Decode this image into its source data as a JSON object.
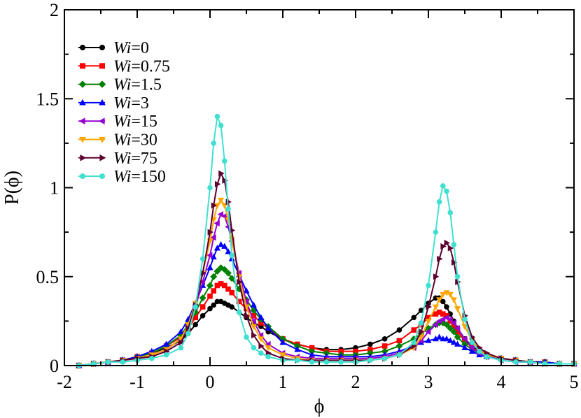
{
  "chart_data": {
    "type": "line",
    "xlabel": "ϕ",
    "ylabel": "P(ϕ)",
    "xlim": [
      -2,
      5
    ],
    "ylim": [
      0,
      2
    ],
    "xticks": [
      -2,
      -1,
      0,
      1,
      2,
      3,
      4,
      5
    ],
    "yticks": [
      0,
      0.5,
      1,
      1.5,
      2
    ],
    "xtick_labels": [
      "-2",
      "-1",
      "0",
      "1",
      "2",
      "3",
      "4",
      "5"
    ],
    "ytick_labels": [
      "0",
      "0.5",
      "1",
      "1.5",
      "2"
    ],
    "legend_position": "top-left",
    "legend_prefix": "Wi",
    "x": [
      -1.8,
      -1.6,
      -1.4,
      -1.2,
      -1.0,
      -0.8,
      -0.6,
      -0.4,
      -0.3,
      -0.2,
      -0.1,
      0.0,
      0.05,
      0.1,
      0.15,
      0.2,
      0.25,
      0.3,
      0.4,
      0.5,
      0.6,
      0.7,
      0.8,
      1.0,
      1.2,
      1.4,
      1.6,
      1.8,
      2.0,
      2.2,
      2.4,
      2.6,
      2.8,
      2.9,
      3.0,
      3.1,
      3.15,
      3.2,
      3.25,
      3.3,
      3.35,
      3.4,
      3.5,
      3.6,
      3.7,
      3.8,
      4.0,
      4.2,
      4.4,
      4.6,
      4.8,
      5.0
    ],
    "series": [
      {
        "name": "Wi=0",
        "label": "=0",
        "color": "#000000",
        "marker": "circle",
        "values": [
          0.0,
          0.01,
          0.02,
          0.03,
          0.05,
          0.07,
          0.1,
          0.14,
          0.18,
          0.23,
          0.28,
          0.32,
          0.34,
          0.36,
          0.36,
          0.35,
          0.34,
          0.33,
          0.3,
          0.27,
          0.24,
          0.22,
          0.19,
          0.15,
          0.12,
          0.1,
          0.09,
          0.09,
          0.1,
          0.12,
          0.15,
          0.2,
          0.27,
          0.31,
          0.35,
          0.38,
          0.38,
          0.36,
          0.33,
          0.29,
          0.25,
          0.21,
          0.15,
          0.11,
          0.08,
          0.06,
          0.04,
          0.03,
          0.02,
          0.02,
          0.01,
          0.01
        ]
      },
      {
        "name": "Wi=0.75",
        "label": "=0.75",
        "color": "#ff0000",
        "marker": "square",
        "values": [
          0.0,
          0.01,
          0.02,
          0.03,
          0.05,
          0.07,
          0.11,
          0.16,
          0.21,
          0.27,
          0.33,
          0.39,
          0.42,
          0.45,
          0.46,
          0.45,
          0.43,
          0.41,
          0.36,
          0.32,
          0.28,
          0.24,
          0.21,
          0.15,
          0.12,
          0.1,
          0.08,
          0.08,
          0.08,
          0.09,
          0.11,
          0.14,
          0.2,
          0.23,
          0.27,
          0.29,
          0.3,
          0.29,
          0.28,
          0.25,
          0.22,
          0.19,
          0.14,
          0.1,
          0.08,
          0.06,
          0.04,
          0.03,
          0.02,
          0.02,
          0.01,
          0.01
        ]
      },
      {
        "name": "Wi=1.5",
        "label": "=1.5",
        "color": "#008000",
        "marker": "diamond",
        "values": [
          0.0,
          0.01,
          0.02,
          0.03,
          0.05,
          0.07,
          0.11,
          0.17,
          0.23,
          0.3,
          0.38,
          0.45,
          0.5,
          0.53,
          0.55,
          0.54,
          0.52,
          0.49,
          0.43,
          0.37,
          0.31,
          0.26,
          0.22,
          0.15,
          0.11,
          0.08,
          0.07,
          0.06,
          0.06,
          0.07,
          0.08,
          0.11,
          0.15,
          0.18,
          0.21,
          0.23,
          0.24,
          0.24,
          0.23,
          0.21,
          0.19,
          0.16,
          0.12,
          0.09,
          0.07,
          0.05,
          0.04,
          0.03,
          0.02,
          0.02,
          0.01,
          0.01
        ]
      },
      {
        "name": "Wi=3",
        "label": "=3",
        "color": "#0000ff",
        "marker": "triangle-up",
        "values": [
          0.0,
          0.01,
          0.02,
          0.03,
          0.05,
          0.08,
          0.12,
          0.19,
          0.26,
          0.35,
          0.45,
          0.55,
          0.61,
          0.66,
          0.68,
          0.67,
          0.64,
          0.6,
          0.51,
          0.42,
          0.34,
          0.27,
          0.21,
          0.13,
          0.09,
          0.06,
          0.05,
          0.05,
          0.05,
          0.05,
          0.06,
          0.08,
          0.11,
          0.13,
          0.14,
          0.15,
          0.16,
          0.15,
          0.15,
          0.14,
          0.13,
          0.12,
          0.1,
          0.08,
          0.06,
          0.05,
          0.04,
          0.03,
          0.02,
          0.02,
          0.01,
          0.01
        ]
      },
      {
        "name": "Wi=15",
        "label": "=15",
        "color": "#9400d3",
        "marker": "triangle-left",
        "values": [
          0.0,
          0.01,
          0.02,
          0.03,
          0.04,
          0.06,
          0.09,
          0.15,
          0.22,
          0.33,
          0.47,
          0.62,
          0.72,
          0.8,
          0.85,
          0.84,
          0.78,
          0.7,
          0.52,
          0.36,
          0.25,
          0.17,
          0.12,
          0.07,
          0.05,
          0.04,
          0.04,
          0.04,
          0.04,
          0.04,
          0.05,
          0.07,
          0.1,
          0.14,
          0.19,
          0.23,
          0.25,
          0.26,
          0.27,
          0.26,
          0.24,
          0.21,
          0.15,
          0.1,
          0.07,
          0.05,
          0.03,
          0.02,
          0.02,
          0.01,
          0.01,
          0.01
        ]
      },
      {
        "name": "Wi=30",
        "label": "=30",
        "color": "#ffa500",
        "marker": "triangle-down",
        "values": [
          0.0,
          0.01,
          0.02,
          0.03,
          0.04,
          0.06,
          0.09,
          0.15,
          0.23,
          0.35,
          0.52,
          0.7,
          0.82,
          0.9,
          0.93,
          0.9,
          0.82,
          0.71,
          0.5,
          0.33,
          0.22,
          0.15,
          0.1,
          0.06,
          0.04,
          0.03,
          0.03,
          0.03,
          0.03,
          0.03,
          0.04,
          0.06,
          0.1,
          0.16,
          0.25,
          0.33,
          0.37,
          0.4,
          0.41,
          0.4,
          0.37,
          0.32,
          0.22,
          0.14,
          0.09,
          0.06,
          0.04,
          0.03,
          0.02,
          0.01,
          0.01,
          0.01
        ]
      },
      {
        "name": "Wi=75",
        "label": "=75",
        "color": "#5c0030",
        "marker": "triangle-right",
        "values": [
          0.0,
          0.01,
          0.02,
          0.03,
          0.04,
          0.05,
          0.08,
          0.13,
          0.21,
          0.34,
          0.52,
          0.75,
          0.9,
          1.02,
          1.08,
          1.04,
          0.92,
          0.76,
          0.47,
          0.28,
          0.17,
          0.11,
          0.07,
          0.04,
          0.03,
          0.03,
          0.03,
          0.03,
          0.03,
          0.03,
          0.04,
          0.06,
          0.11,
          0.19,
          0.33,
          0.5,
          0.6,
          0.67,
          0.69,
          0.66,
          0.58,
          0.47,
          0.28,
          0.16,
          0.1,
          0.07,
          0.04,
          0.03,
          0.02,
          0.01,
          0.01,
          0.01
        ]
      },
      {
        "name": "Wi=150",
        "label": "=150",
        "color": "#40e0d0",
        "marker": "circle",
        "values": [
          0.0,
          0.01,
          0.02,
          0.02,
          0.03,
          0.04,
          0.06,
          0.1,
          0.18,
          0.33,
          0.6,
          1.0,
          1.25,
          1.4,
          1.35,
          1.15,
          0.88,
          0.62,
          0.3,
          0.16,
          0.1,
          0.07,
          0.05,
          0.03,
          0.03,
          0.02,
          0.02,
          0.02,
          0.02,
          0.03,
          0.04,
          0.06,
          0.13,
          0.24,
          0.45,
          0.75,
          0.92,
          1.01,
          0.98,
          0.86,
          0.68,
          0.5,
          0.26,
          0.13,
          0.08,
          0.05,
          0.03,
          0.02,
          0.02,
          0.01,
          0.01,
          0.01
        ]
      }
    ]
  }
}
